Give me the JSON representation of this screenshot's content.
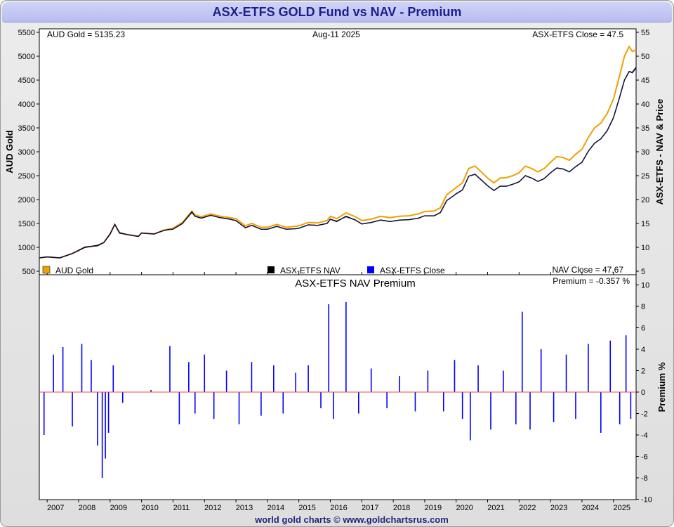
{
  "title": "ASX-ETFS GOLD Fund vs NAV - Premium",
  "footer": "world gold charts © www.goldchartsrus.com",
  "info": {
    "aud_gold": "AUD Gold = 5135.23",
    "date": "Aug-11  2025",
    "etfs_close": "ASX-ETFS Close = 47.5",
    "nav_close": "NAV Close = 47.67",
    "premium": "Premium = -0.357 %"
  },
  "legend": [
    {
      "label": "AUD Gold",
      "color": "#f0a000"
    },
    {
      "label": "ASX-ETFS NAV",
      "color": "#000000"
    },
    {
      "label": "ASX-ETFS Close",
      "color": "#0000ff"
    }
  ],
  "colors": {
    "gold": "#f0a000",
    "nav": "#000000",
    "close": "#10104a",
    "premium": "#0000ff",
    "zero_line": "#ff4040"
  },
  "chart_data": [
    {
      "type": "line",
      "x_ticks": [
        "2007",
        "2008",
        "2009",
        "2010",
        "2011",
        "2012",
        "2013",
        "2014",
        "2015",
        "2016",
        "2017",
        "2018",
        "2019",
        "2020",
        "2021",
        "2022",
        "2023",
        "2024",
        "2025"
      ],
      "xlim": [
        2006.75,
        2025.72
      ],
      "ylabel": "AUD Gold",
      "ylabel_right": "ASX-ETFS - NAV & Price",
      "y_ticks_left": [
        500,
        1000,
        1500,
        2000,
        2500,
        3000,
        3500,
        4000,
        4500,
        5000,
        5500
      ],
      "y_ticks_right": [
        5,
        10,
        15,
        20,
        25,
        30,
        35,
        40,
        45,
        50,
        55
      ],
      "ylim_left": [
        500,
        5500
      ],
      "ylim_right": [
        5,
        55
      ],
      "grid": false,
      "legend_position": "bottom",
      "series": [
        {
          "name": "AUD Gold",
          "axis": "left",
          "x": [
            2006.75,
            2007.0,
            2007.4,
            2007.8,
            2008.2,
            2008.6,
            2008.8,
            2009.0,
            2009.15,
            2009.3,
            2009.6,
            2009.9,
            2010.0,
            2010.4,
            2010.7,
            2010.85,
            2011.0,
            2011.3,
            2011.6,
            2011.7,
            2011.9,
            2012.2,
            2012.5,
            2012.8,
            2013.0,
            2013.3,
            2013.5,
            2013.8,
            2014.0,
            2014.3,
            2014.6,
            2014.9,
            2015.0,
            2015.3,
            2015.6,
            2015.9,
            2016.0,
            2016.2,
            2016.5,
            2016.8,
            2017.0,
            2017.3,
            2017.6,
            2017.9,
            2018.2,
            2018.5,
            2018.8,
            2019.0,
            2019.3,
            2019.5,
            2019.7,
            2019.9,
            2020.0,
            2020.2,
            2020.4,
            2020.6,
            2020.8,
            2021.0,
            2021.2,
            2021.4,
            2021.6,
            2021.8,
            2022.0,
            2022.2,
            2022.4,
            2022.6,
            2022.8,
            2023.0,
            2023.2,
            2023.4,
            2023.6,
            2023.8,
            2024.0,
            2024.2,
            2024.4,
            2024.6,
            2024.8,
            2025.0,
            2025.2,
            2025.35,
            2025.5,
            2025.6,
            2025.72
          ],
          "y": [
            780,
            800,
            780,
            870,
            1000,
            1040,
            1100,
            1280,
            1480,
            1300,
            1260,
            1230,
            1300,
            1280,
            1360,
            1380,
            1400,
            1520,
            1760,
            1680,
            1640,
            1700,
            1650,
            1620,
            1600,
            1450,
            1500,
            1420,
            1420,
            1480,
            1420,
            1440,
            1450,
            1520,
            1510,
            1560,
            1650,
            1600,
            1720,
            1640,
            1560,
            1590,
            1650,
            1620,
            1650,
            1660,
            1700,
            1750,
            1760,
            1830,
            2100,
            2200,
            2250,
            2350,
            2650,
            2700,
            2580,
            2450,
            2350,
            2450,
            2460,
            2500,
            2560,
            2700,
            2650,
            2580,
            2650,
            2780,
            2900,
            2880,
            2820,
            2950,
            3050,
            3300,
            3500,
            3600,
            3800,
            4100,
            4600,
            5000,
            5200,
            5100,
            5135.23
          ]
        },
        {
          "name": "ASX-ETFS NAV",
          "axis": "right",
          "x": [
            2006.75,
            2007.0,
            2007.4,
            2007.8,
            2008.2,
            2008.6,
            2008.8,
            2009.0,
            2009.15,
            2009.3,
            2009.6,
            2009.9,
            2010.0,
            2010.4,
            2010.7,
            2010.85,
            2011.0,
            2011.3,
            2011.6,
            2011.7,
            2011.9,
            2012.2,
            2012.5,
            2012.8,
            2013.0,
            2013.3,
            2013.5,
            2013.8,
            2014.0,
            2014.3,
            2014.6,
            2014.9,
            2015.0,
            2015.3,
            2015.6,
            2015.9,
            2016.0,
            2016.2,
            2016.5,
            2016.8,
            2017.0,
            2017.3,
            2017.6,
            2017.9,
            2018.2,
            2018.5,
            2018.8,
            2019.0,
            2019.3,
            2019.5,
            2019.7,
            2019.9,
            2020.0,
            2020.2,
            2020.4,
            2020.6,
            2020.8,
            2021.0,
            2021.2,
            2021.4,
            2021.6,
            2021.8,
            2022.0,
            2022.2,
            2022.4,
            2022.6,
            2022.8,
            2023.0,
            2023.2,
            2023.4,
            2023.6,
            2023.8,
            2024.0,
            2024.2,
            2024.4,
            2024.6,
            2024.8,
            2025.0,
            2025.2,
            2025.35,
            2025.5,
            2025.6,
            2025.72
          ],
          "y": [
            7.8,
            8.0,
            7.8,
            8.7,
            10.0,
            10.4,
            11.0,
            12.8,
            14.8,
            13.0,
            12.6,
            12.3,
            13.0,
            12.8,
            13.5,
            13.7,
            13.8,
            15.0,
            17.4,
            16.5,
            16.1,
            16.7,
            16.2,
            15.9,
            15.6,
            14.1,
            14.6,
            13.8,
            13.8,
            14.4,
            13.8,
            13.9,
            14.0,
            14.7,
            14.6,
            15.0,
            15.9,
            15.4,
            16.5,
            15.7,
            14.9,
            15.2,
            15.7,
            15.4,
            15.7,
            15.8,
            16.1,
            16.6,
            16.6,
            17.3,
            19.8,
            20.7,
            21.2,
            22.0,
            24.9,
            25.3,
            24.1,
            22.9,
            21.9,
            22.8,
            22.8,
            23.2,
            23.7,
            25.0,
            24.5,
            23.8,
            24.4,
            25.6,
            26.6,
            26.4,
            25.8,
            26.9,
            27.8,
            30.1,
            31.8,
            32.7,
            34.4,
            37.1,
            41.5,
            45.0,
            46.8,
            46.6,
            47.67
          ]
        },
        {
          "name": "ASX-ETFS Close",
          "axis": "right",
          "x": [
            2006.75,
            2007.0,
            2007.4,
            2007.8,
            2008.2,
            2008.6,
            2008.8,
            2009.0,
            2009.15,
            2009.3,
            2009.6,
            2009.9,
            2010.0,
            2010.4,
            2010.7,
            2010.85,
            2011.0,
            2011.3,
            2011.6,
            2011.7,
            2011.9,
            2012.2,
            2012.5,
            2012.8,
            2013.0,
            2013.3,
            2013.5,
            2013.8,
            2014.0,
            2014.3,
            2014.6,
            2014.9,
            2015.0,
            2015.3,
            2015.6,
            2015.9,
            2016.0,
            2016.2,
            2016.5,
            2016.8,
            2017.0,
            2017.3,
            2017.6,
            2017.9,
            2018.2,
            2018.5,
            2018.8,
            2019.0,
            2019.3,
            2019.5,
            2019.7,
            2019.9,
            2020.0,
            2020.2,
            2020.4,
            2020.6,
            2020.8,
            2021.0,
            2021.2,
            2021.4,
            2021.6,
            2021.8,
            2022.0,
            2022.2,
            2022.4,
            2022.6,
            2022.8,
            2023.0,
            2023.2,
            2023.4,
            2023.6,
            2023.8,
            2024.0,
            2024.2,
            2024.4,
            2024.6,
            2024.8,
            2025.0,
            2025.2,
            2025.35,
            2025.5,
            2025.6,
            2025.72
          ],
          "y": [
            7.8,
            8.0,
            7.8,
            8.7,
            10.1,
            10.3,
            11.0,
            12.7,
            14.8,
            13.1,
            12.6,
            12.3,
            13.0,
            12.8,
            13.5,
            13.7,
            13.8,
            15.0,
            17.3,
            16.5,
            16.1,
            16.7,
            16.2,
            15.9,
            15.6,
            14.1,
            14.6,
            13.8,
            13.8,
            14.4,
            13.8,
            13.9,
            14.0,
            14.7,
            14.6,
            15.0,
            15.9,
            15.5,
            16.4,
            15.7,
            14.9,
            15.2,
            15.7,
            15.4,
            15.7,
            15.8,
            16.1,
            16.6,
            16.6,
            17.3,
            19.8,
            20.7,
            21.2,
            22.0,
            24.9,
            25.3,
            24.1,
            22.9,
            21.9,
            22.8,
            22.8,
            23.2,
            23.7,
            25.0,
            24.5,
            23.8,
            24.4,
            25.6,
            26.6,
            26.4,
            25.8,
            26.9,
            27.8,
            30.1,
            31.8,
            32.7,
            34.4,
            37.1,
            41.5,
            45.0,
            46.8,
            46.5,
            47.5
          ]
        }
      ]
    },
    {
      "type": "bar",
      "title": "ASX-ETFS NAV Premium",
      "ylabel": "Premium %",
      "y_ticks": [
        -10,
        -8,
        -6,
        -4,
        -2,
        0,
        2,
        4,
        6,
        8,
        10
      ],
      "ylim": [
        -10,
        10
      ],
      "xlim": [
        2006.75,
        2025.72
      ],
      "series": [
        {
          "name": "ASX-ETFS NAV Premium",
          "x": [
            2006.9,
            2007.2,
            2007.5,
            2007.8,
            2008.1,
            2008.4,
            2008.6,
            2008.75,
            2008.85,
            2008.95,
            2009.1,
            2009.4,
            2010.3,
            2010.9,
            2011.2,
            2011.5,
            2011.7,
            2012.0,
            2012.3,
            2012.7,
            2013.1,
            2013.5,
            2013.8,
            2014.2,
            2014.5,
            2014.9,
            2015.3,
            2015.7,
            2015.95,
            2016.1,
            2016.5,
            2016.9,
            2017.3,
            2017.8,
            2018.2,
            2018.7,
            2019.1,
            2019.6,
            2019.95,
            2020.2,
            2020.45,
            2020.7,
            2021.1,
            2021.5,
            2021.9,
            2022.1,
            2022.35,
            2022.7,
            2023.1,
            2023.5,
            2023.8,
            2024.2,
            2024.6,
            2024.9,
            2025.2,
            2025.4,
            2025.55
          ],
          "y": [
            -4.0,
            3.5,
            4.2,
            -3.2,
            4.5,
            3.0,
            -5.0,
            -8.0,
            -6.2,
            -3.8,
            2.5,
            -1.0,
            0.2,
            4.3,
            -3.0,
            2.8,
            -2.0,
            3.5,
            -2.5,
            2.0,
            -3.0,
            2.8,
            -2.2,
            2.5,
            -2.0,
            1.8,
            2.5,
            -1.5,
            8.2,
            -2.5,
            8.4,
            -2.0,
            2.2,
            -1.5,
            1.5,
            -1.8,
            2.0,
            -1.8,
            3.0,
            -2.5,
            -4.5,
            2.5,
            -3.5,
            2.0,
            -3.0,
            7.5,
            -3.5,
            4.0,
            -2.8,
            3.5,
            -2.5,
            4.5,
            -3.8,
            4.8,
            -3.0,
            5.3,
            -2.5
          ]
        }
      ]
    }
  ]
}
